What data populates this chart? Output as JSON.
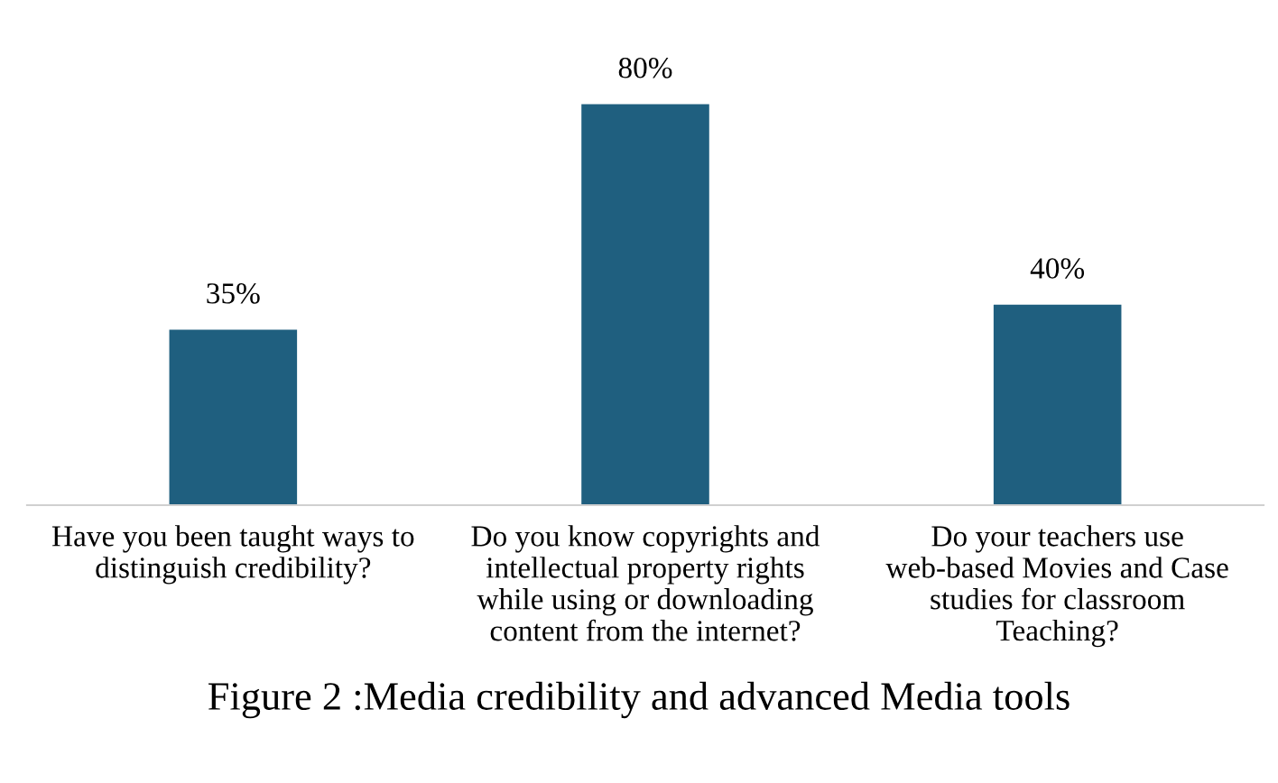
{
  "chart_data": {
    "type": "bar",
    "title": "Figure 2 :Media credibility and advanced Media tools",
    "categories": [
      "Have you been taught ways to distinguish credibility?",
      "Do you know copyrights and intellectual property rights while using or downloading content from the internet?",
      "Do your teachers use web-based Movies and Case studies for classroom Teaching?"
    ],
    "values": [
      35,
      80,
      40
    ],
    "value_labels": [
      "35%",
      "80%",
      "40%"
    ],
    "color": "#1f5f7f",
    "grid": false,
    "legend": false
  }
}
